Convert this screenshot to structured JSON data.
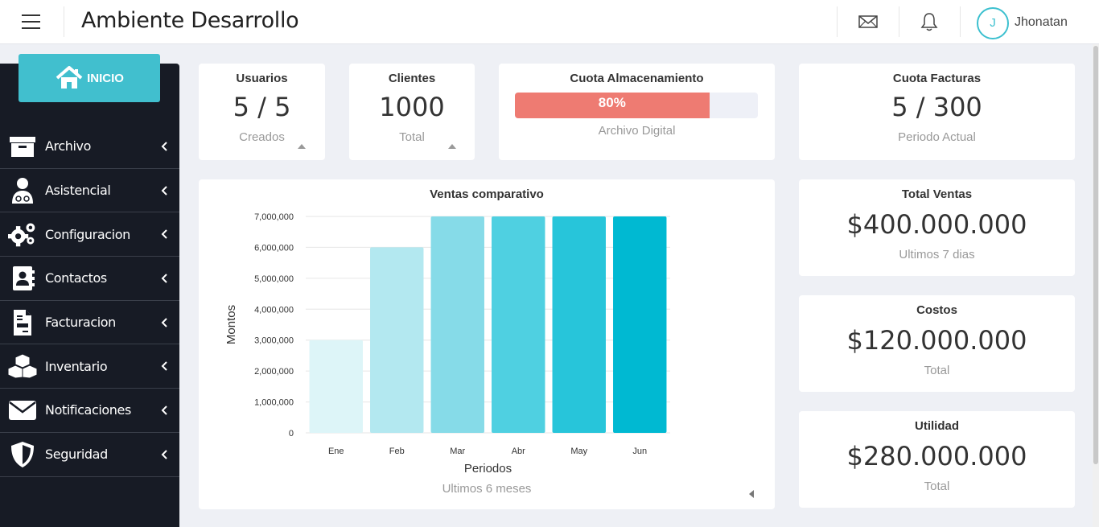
{
  "header": {
    "title": "Ambiente Desarrollo",
    "avatar_initial": "J",
    "username": "Jhonatan"
  },
  "sidebar": {
    "home_label": "INICIO",
    "items": [
      {
        "label": "Archivo",
        "icon": "archive-icon"
      },
      {
        "label": "Asistencial",
        "icon": "doctor-icon"
      },
      {
        "label": "Configuracion",
        "icon": "gears-icon"
      },
      {
        "label": "Contactos",
        "icon": "contact-book-icon"
      },
      {
        "label": "Facturacion",
        "icon": "invoice-icon"
      },
      {
        "label": "Inventario",
        "icon": "boxes-icon"
      },
      {
        "label": "Notificaciones",
        "icon": "envelope-icon"
      },
      {
        "label": "Seguridad",
        "icon": "shield-icon"
      }
    ]
  },
  "cards": {
    "usuarios": {
      "title": "Usuarios",
      "value": "5 / 5",
      "sub": "Creados"
    },
    "clientes": {
      "title": "Clientes",
      "value": "1000",
      "sub": "Total"
    },
    "storage": {
      "title": "Cuota Almacenamiento",
      "percent_label": "80%",
      "percent": 80,
      "sub": "Archivo Digital"
    },
    "facturas": {
      "title": "Cuota Facturas",
      "value": "5 / 300",
      "sub": "Periodo Actual"
    },
    "total_ventas": {
      "title": "Total Ventas",
      "value": "$400.000.000",
      "sub": "Ultimos 7 dias"
    },
    "costos": {
      "title": "Costos",
      "value": "$120.000.000",
      "sub": "Total"
    },
    "utilidad": {
      "title": "Utilidad",
      "value": "$280.000.000",
      "sub": "Total"
    }
  },
  "colors": {
    "accent": "#41bfce",
    "progress": "#ee7b72",
    "sidebar_bg": "#171b25"
  },
  "chart_data": {
    "type": "bar",
    "title": "Ventas comparativo",
    "subtitle": "Ultimos 6 meses",
    "xlabel": "Periodos",
    "ylabel": "Montos",
    "categories": [
      "Ene",
      "Feb",
      "Mar",
      "Abr",
      "May",
      "Jun"
    ],
    "values": [
      3000000,
      6000000,
      7000000,
      7000000,
      7000000,
      7000000
    ],
    "bar_colors": [
      "#ddf5f8",
      "#b3e8f0",
      "#86dbe8",
      "#4fd0e1",
      "#27c5da",
      "#00b9d2"
    ],
    "yticks": [
      "0",
      "1,000,000",
      "2,000,000",
      "3,000,000",
      "4,000,000",
      "5,000,000",
      "6,000,000",
      "7,000,000"
    ],
    "ylim": [
      0,
      7000000
    ],
    "grid": true
  }
}
